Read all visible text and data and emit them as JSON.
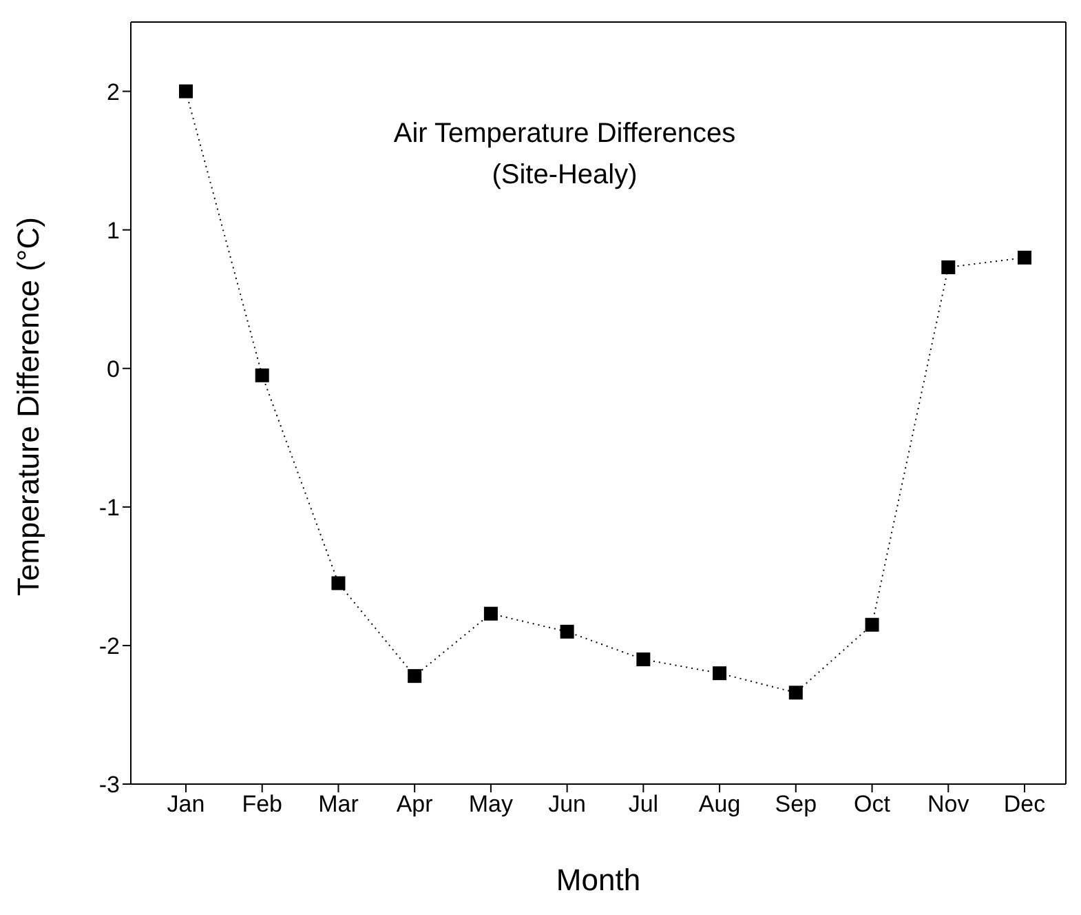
{
  "chart_data": {
    "type": "line",
    "title": "Air Temperature Differences",
    "subtitle": "(Site-Healy)",
    "xlabel": "Month",
    "ylabel": "Temperature Difference (°C)",
    "categories": [
      "Jan",
      "Feb",
      "Mar",
      "Apr",
      "May",
      "Jun",
      "Jul",
      "Aug",
      "Sep",
      "Oct",
      "Nov",
      "Dec"
    ],
    "series": [
      {
        "color": "#000000",
        "values": [
          2.0,
          -0.05,
          -1.55,
          -2.22,
          -1.77,
          -1.9,
          -2.1,
          -2.2,
          -2.34,
          -1.85,
          0.73,
          0.8
        ]
      }
    ],
    "ylim": [
      -3,
      2.5
    ],
    "yticks": [
      -3,
      -2,
      -1,
      0,
      1,
      2
    ],
    "grid": false,
    "legend": false,
    "marker": "square",
    "line_style": "dotted"
  }
}
